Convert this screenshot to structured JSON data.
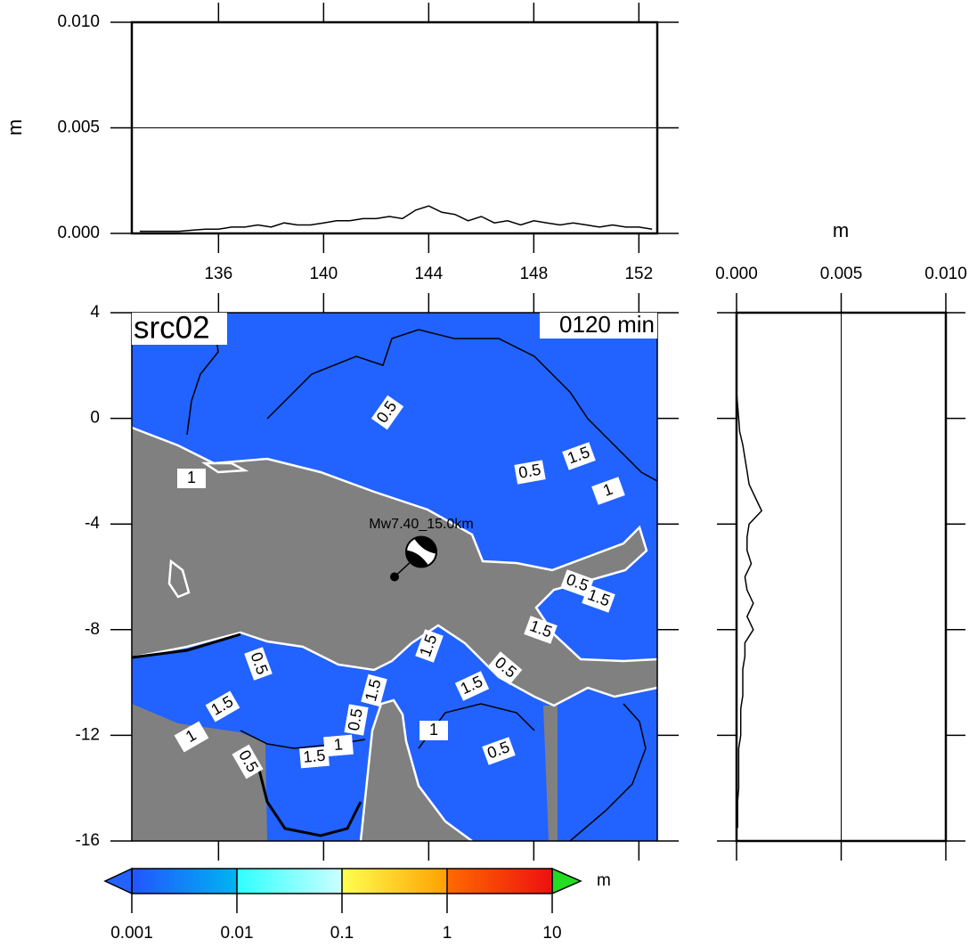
{
  "chart_data": [
    {
      "type": "line",
      "ylabel": "m",
      "color": "#000000",
      "grid": true,
      "xlim": [
        132.7,
        152.7
      ],
      "ylim": [
        0,
        0.01
      ],
      "xticks": [
        136,
        140,
        144,
        148,
        152
      ],
      "yticks": [
        {
          "value": 0,
          "label": "0.000"
        },
        {
          "value": 0.005,
          "label": "0.005"
        },
        {
          "value": 0.01,
          "label": "0.010"
        }
      ],
      "x": [
        133,
        133.5,
        134,
        134.5,
        135,
        135.5,
        136,
        136.5,
        137,
        137.5,
        138,
        138.5,
        139,
        139.5,
        140,
        140.5,
        141,
        141.5,
        142,
        142.5,
        143,
        143.5,
        144,
        144.5,
        145,
        145.5,
        146,
        146.5,
        147,
        147.5,
        148,
        148.5,
        149,
        149.5,
        150,
        150.5,
        151,
        151.5,
        152,
        152.5
      ],
      "values": [
        0.0001,
        0.0001,
        0.0001,
        0.0001,
        0.00015,
        0.0002,
        0.0002,
        0.0003,
        0.0003,
        0.0004,
        0.0003,
        0.0005,
        0.0004,
        0.0004,
        0.0005,
        0.0006,
        0.0006,
        0.0007,
        0.0007,
        0.0008,
        0.0007,
        0.0011,
        0.0013,
        0.001,
        0.0009,
        0.0006,
        0.0008,
        0.0005,
        0.0006,
        0.0004,
        0.0006,
        0.0005,
        0.0004,
        0.0005,
        0.0004,
        0.0003,
        0.0004,
        0.0003,
        0.0003,
        0.0002
      ]
    },
    {
      "type": "line",
      "orientation": "horizontal",
      "xlabel": "m",
      "color": "#000000",
      "grid": true,
      "xlim": [
        0,
        0.01
      ],
      "ylim": [
        4,
        -16
      ],
      "xticks": [
        {
          "value": 0,
          "label": "0.000"
        },
        {
          "value": 0.005,
          "label": "0.005"
        },
        {
          "value": 0.01,
          "label": "0.010"
        }
      ],
      "y": [
        4,
        3.5,
        3,
        2.5,
        2,
        1.5,
        1,
        0.5,
        0,
        -0.5,
        -1,
        -1.5,
        -2,
        -2.5,
        -3,
        -3.5,
        -4,
        -4.5,
        -5,
        -5.5,
        -6,
        -6.5,
        -7,
        -7.5,
        -8,
        -8.5,
        -9,
        -9.5,
        -10,
        -10.5,
        -11,
        -11.5,
        -12,
        -12.5,
        -13,
        -13.5,
        -14,
        -14.5,
        -15,
        -15.5
      ],
      "values": [
        0,
        0,
        0,
        0,
        0,
        0,
        0,
        5e-05,
        0.0001,
        0.00015,
        0.0003,
        0.0004,
        0.0005,
        0.0006,
        0.0009,
        0.0012,
        0.0006,
        0.0005,
        0.0005,
        0.0007,
        0.0004,
        0.0005,
        0.0008,
        0.0005,
        0.0008,
        0.0004,
        0.0004,
        0.0003,
        0.0003,
        0.0003,
        0.0002,
        0.0002,
        0.0002,
        0.0001,
        0.0001,
        0.0001,
        0.0001,
        5e-05,
        5e-05,
        5e-05
      ]
    }
  ],
  "map": {
    "title": "src02",
    "time_label": "0120 min",
    "event_label": "Mw7.40_15.0km",
    "xlim": [
      132.7,
      152.7
    ],
    "ylim": [
      -16,
      4
    ],
    "yticks": [
      4,
      0,
      -4,
      -8,
      -12,
      -16
    ],
    "epicenter": {
      "lon": 142.7,
      "lat": -6.0
    },
    "sea_color": "#2262ff",
    "land_color": "#808080",
    "contour_labels": [
      "0.5",
      "1",
      "0.5",
      "1.5",
      "1",
      "0.5",
      "1.5",
      "1.5",
      "1.5",
      "0.5",
      "1.5",
      "1",
      "0.5",
      "1.5",
      "1",
      "0.5",
      "1.5",
      "1.5",
      "0.5",
      "1",
      "0.5"
    ]
  },
  "colorbar": {
    "unit": "m",
    "log": true,
    "lim": [
      0.001,
      10
    ],
    "ticks": [
      0.001,
      0.01,
      0.1,
      1,
      10
    ],
    "segment_colors": [
      [
        "#2255ff",
        "#00b4f0"
      ],
      [
        "#2effff",
        "#ccffff"
      ],
      [
        "#ffff50",
        "#ffa000"
      ],
      [
        "#ff6a00",
        "#ee1010"
      ]
    ],
    "under_color": "#2262ff",
    "over_color": "#22dd22"
  }
}
